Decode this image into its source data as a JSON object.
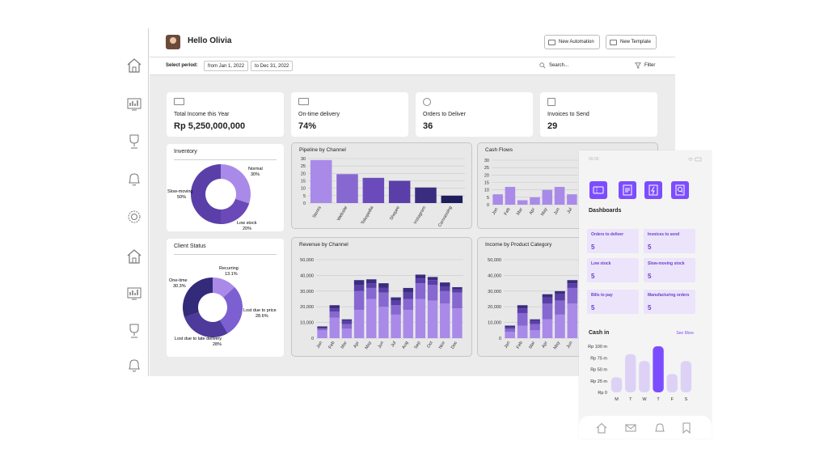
{
  "header": {
    "greeting": "Hello Olivia",
    "new_automation": "New Automation",
    "new_template": "New Template"
  },
  "filters": {
    "select_period": "Select period:",
    "from": "from Jan 1, 2022",
    "to": "to Dec 31, 2022",
    "search_placeholder": "Search...",
    "filter": "Filter"
  },
  "sidebar": {
    "icons": [
      "home-icon",
      "analytics-icon",
      "trophy-icon",
      "bell-icon",
      "settings-icon",
      "home-icon",
      "analytics-icon",
      "trophy-icon",
      "bell-icon"
    ]
  },
  "kpis": [
    {
      "label": "Total Income this Year",
      "value": "Rp 5,250,000,000",
      "icon": "cash-icon"
    },
    {
      "label": "On-time delivery",
      "value": "74%",
      "icon": "truck-icon"
    },
    {
      "label": "Orders to Deliver",
      "value": "36",
      "icon": "user-icon"
    },
    {
      "label": "Invoices to Send",
      "value": "29",
      "icon": "checkbox-icon"
    }
  ],
  "inventory": {
    "title": "Inventory",
    "slices": [
      {
        "label": "Normal",
        "pct": "30%",
        "value": 30,
        "color": "#a98ae8"
      },
      {
        "label": "Low stock",
        "pct": "20%",
        "value": 20,
        "color": "#6b49b8"
      },
      {
        "label": "Slow-moving",
        "pct": "50%",
        "value": 50,
        "color": "#5a3fa8"
      }
    ]
  },
  "client_status": {
    "title": "Client Status",
    "slices": [
      {
        "label": "Recurring",
        "pct": "13.1%",
        "value": 13.1,
        "color": "#a98ae8"
      },
      {
        "label": "Lost due to price",
        "pct": "28.6%",
        "value": 28.6,
        "color": "#7c5fd0"
      },
      {
        "label": "Lost due to late delivery",
        "pct": "28%",
        "value": 28,
        "color": "#4d3a9a"
      },
      {
        "label": "One-time",
        "pct": "30.3%",
        "value": 30.3,
        "color": "#332a7a"
      }
    ]
  },
  "chart_data": [
    {
      "type": "bar",
      "title": "Pipeline by Channel",
      "categories": [
        "Stores",
        "Website",
        "Tokopedia",
        "Shopee",
        "Instagram",
        "Canvassing"
      ],
      "values": [
        29,
        19.5,
        17,
        15,
        10.5,
        5
      ],
      "colors": [
        "#a98ae8",
        "#8768d0",
        "#6b4bbc",
        "#5a3fa8",
        "#3a2d80",
        "#1e1d5e"
      ],
      "ylim": [
        0,
        30
      ],
      "yticks": [
        "30",
        "25",
        "20",
        "15",
        "10",
        "5",
        "0"
      ]
    },
    {
      "type": "bar",
      "title": "Cash Flows",
      "categories": [
        "Jan",
        "Feb",
        "Mar",
        "Apr",
        "May",
        "Jun",
        "Jul"
      ],
      "values": [
        7,
        12,
        3,
        5,
        10,
        12,
        7
      ],
      "color": "#a98ae8",
      "ylim": [
        0,
        30
      ],
      "yticks": [
        "30",
        "25",
        "20",
        "15",
        "10",
        "5",
        "0"
      ]
    },
    {
      "type": "bar",
      "title": "Revenue by Channel",
      "categories": [
        "Jan",
        "Feb",
        "Mar",
        "Apr",
        "May",
        "Jun",
        "Jul",
        "Aug",
        "Sep",
        "Oct",
        "Nov",
        "Dec"
      ],
      "stacked": true,
      "series": [
        {
          "color": "#a98ae8",
          "values": [
            5000,
            13000,
            6000,
            18000,
            25000,
            20000,
            15000,
            18000,
            25000,
            24000,
            22000,
            19000
          ]
        },
        {
          "color": "#8768d0",
          "values": [
            1000,
            4000,
            3000,
            12000,
            7000,
            9000,
            6000,
            7000,
            10000,
            10000,
            8000,
            10000
          ]
        },
        {
          "color": "#5a3fa8",
          "values": [
            500,
            2000,
            2000,
            4000,
            3000,
            3000,
            3000,
            4000,
            3000,
            3000,
            3000,
            2000
          ]
        },
        {
          "color": "#3a2d80",
          "values": [
            1000,
            2000,
            1000,
            3000,
            2500,
            3000,
            2000,
            3000,
            2500,
            2000,
            2500,
            1500
          ]
        }
      ],
      "ylim": [
        0,
        50000
      ],
      "yticks": [
        "50,000",
        "40,000",
        "30,000",
        "20,000",
        "10,000",
        "0"
      ]
    },
    {
      "type": "bar",
      "title": "Income by Product Category",
      "categories": [
        "Jan",
        "Feb",
        "Mar",
        "Apr",
        "May",
        "Jun",
        "Jul"
      ],
      "stacked": true,
      "series": [
        {
          "color": "#a98ae8",
          "values": [
            4000,
            8000,
            5000,
            12000,
            15000,
            22000,
            18000
          ]
        },
        {
          "color": "#8768d0",
          "values": [
            2000,
            8000,
            4000,
            10000,
            9000,
            10000,
            8000
          ]
        },
        {
          "color": "#5a3fa8",
          "values": [
            1000,
            3000,
            2000,
            4000,
            4000,
            3000,
            4000
          ]
        },
        {
          "color": "#3a2d80",
          "values": [
            1000,
            2000,
            1000,
            2000,
            2000,
            2000,
            2000
          ]
        }
      ],
      "ylim": [
        0,
        50000
      ],
      "yticks": [
        "50,000",
        "40,000",
        "30,000",
        "20,000",
        "10,000",
        "0"
      ]
    },
    {
      "type": "bar",
      "title": "Cash in",
      "categories": [
        "M",
        "T",
        "W",
        "T",
        "F",
        "S"
      ],
      "values": [
        33,
        83,
        68,
        100,
        40,
        68
      ],
      "colors": [
        "#ddd2f6",
        "#ddd2f6",
        "#ddd2f6",
        "#7c4dff",
        "#ddd2f6",
        "#ddd2f6"
      ],
      "ylim": [
        0,
        100
      ],
      "yticks": [
        "Rp 100 m",
        "Rp 75 m",
        "Rp 50 m",
        "Rp 25 m",
        "Rp 0"
      ]
    }
  ],
  "mobile": {
    "time": "09.00",
    "dashboards_label": "Dashboards",
    "tiles": [
      {
        "label": "Orders to deliver",
        "value": "5"
      },
      {
        "label": "Invoices to send",
        "value": "5"
      },
      {
        "label": "Low stock",
        "value": "5"
      },
      {
        "label": "Slow-moving stock",
        "value": "5"
      },
      {
        "label": "Bills to pay",
        "value": "5"
      },
      {
        "label": "Manufacturing orders",
        "value": "5"
      }
    ],
    "cash_in_label": "Cash in",
    "see_more": "See More",
    "accent": "#7c4dff"
  }
}
